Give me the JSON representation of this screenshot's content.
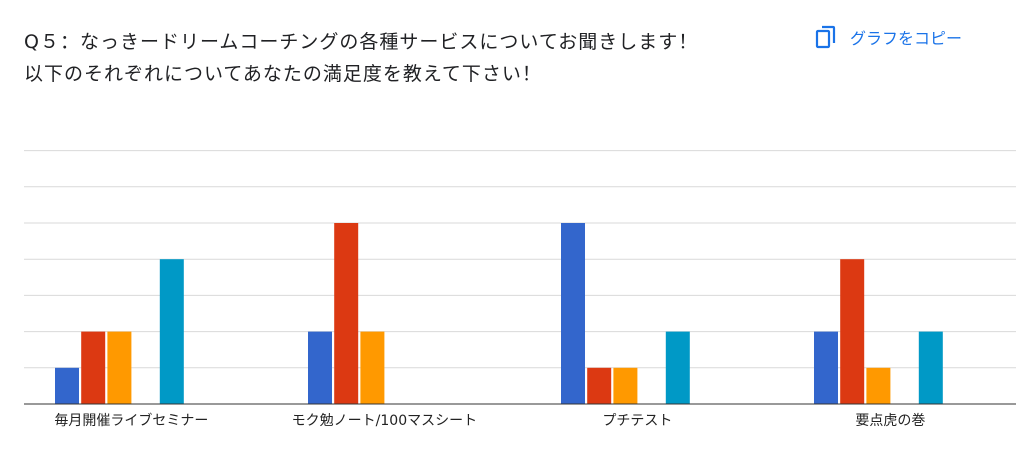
{
  "question": {
    "line1": "Q５：なっきードリームコーチングの各種サービスについてお聞きします！",
    "line2": "以下のそれぞれについてあなたの満足度を教えて下さい！"
  },
  "copy_button": {
    "label": "グラフをコピー",
    "icon": "copy-icon"
  },
  "chart_data": {
    "type": "bar",
    "categories": [
      "毎月開催ライブセミナー",
      "モク勉ノート/100マスシート",
      "プチテスト",
      "要点虎の巻"
    ],
    "series": [
      {
        "values": [
          1,
          2,
          5,
          2
        ],
        "color": "#3366cc"
      },
      {
        "values": [
          2,
          5,
          1,
          4
        ],
        "color": "#dc3912"
      },
      {
        "values": [
          2,
          2,
          1,
          1
        ],
        "color": "#ff9900"
      },
      {
        "values": [
          0,
          0,
          0,
          0
        ],
        "color": "#109618"
      },
      {
        "values": [
          4,
          0,
          2,
          2
        ],
        "color": "#0099c6"
      }
    ],
    "ylim": [
      0,
      7
    ],
    "grid": true,
    "legend": "none"
  }
}
